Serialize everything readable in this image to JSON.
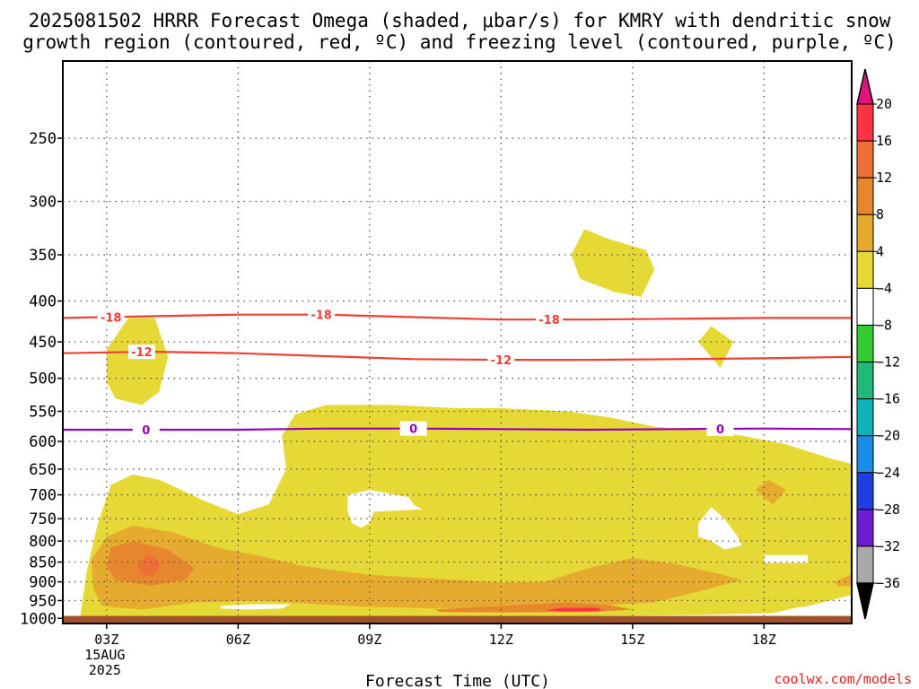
{
  "title": {
    "line1": "2025081502 HRRR Forecast Omega (shaded, μbar/s) for KMRY with dendritic snow",
    "line2": "growth region (contoured, red, ºC) and freezing level (contoured, purple, ºC)"
  },
  "credit": "coolwx.com/models",
  "colors": {
    "ground": "#a0522d",
    "dsg_contour": "#ee4035",
    "freezing_contour": "#9900bb",
    "grid": "#555555"
  },
  "chart_data": {
    "type": "heatmap",
    "xlabel": "Forecast Time (UTC)",
    "ylabel": "",
    "x_unit": "hour UTC, 15 Aug 2025",
    "xlim": [
      2,
      20
    ],
    "x_ticks": [
      {
        "x": 3,
        "label": "03Z",
        "sub": [
          "15AUG",
          "2025"
        ]
      },
      {
        "x": 6,
        "label": "06Z",
        "sub": []
      },
      {
        "x": 9,
        "label": "09Z",
        "sub": []
      },
      {
        "x": 12,
        "label": "12Z",
        "sub": []
      },
      {
        "x": 15,
        "label": "15Z",
        "sub": []
      },
      {
        "x": 18,
        "label": "18Z",
        "sub": []
      }
    ],
    "y_scale": "log",
    "y_inverted": true,
    "ylim": [
      1015,
      200
    ],
    "y_ticks": [
      250,
      300,
      350,
      400,
      450,
      500,
      550,
      600,
      650,
      700,
      750,
      800,
      850,
      900,
      950,
      1000
    ],
    "ground_level": 993,
    "grid": true,
    "colorbar": {
      "levels": [
        20,
        16,
        12,
        8,
        4,
        -4,
        -8,
        -12,
        -16,
        -20,
        -24,
        -28,
        -32,
        -36
      ],
      "colors": [
        "#ff3344",
        "#ee6f35",
        "#e8862d",
        "#e6aa2e",
        "#e6d835",
        "#ffffff",
        "#33cc33",
        "#22b877",
        "#10b3b8",
        "#1a8ee6",
        "#1f3fe0",
        "#6b1fcf",
        "#a011c0",
        "#a9a9a9"
      ],
      "top_arrow_color": "#e0157a",
      "bottom_arrow_color": "#000000"
    },
    "omega_regions": [
      {
        "level": 4,
        "points": [
          [
            2.4,
            992
          ],
          [
            2.55,
            870
          ],
          [
            2.8,
            760
          ],
          [
            3.1,
            680
          ],
          [
            3.6,
            660
          ],
          [
            4.2,
            670
          ],
          [
            5.3,
            715
          ],
          [
            6.0,
            740
          ],
          [
            6.7,
            720
          ],
          [
            7.1,
            650
          ],
          [
            7.0,
            590
          ],
          [
            7.3,
            555
          ],
          [
            8.0,
            540
          ],
          [
            9.5,
            540
          ],
          [
            11.0,
            545
          ],
          [
            12.0,
            545
          ],
          [
            13.5,
            550
          ],
          [
            14.5,
            560
          ],
          [
            15.5,
            575
          ],
          [
            16.5,
            580
          ],
          [
            17.5,
            590
          ],
          [
            18.5,
            605
          ],
          [
            19.5,
            630
          ],
          [
            20,
            640
          ],
          [
            20,
            935
          ],
          [
            19.0,
            965
          ],
          [
            18.2,
            985
          ],
          [
            16.5,
            990
          ],
          [
            14.0,
            993
          ],
          [
            10.0,
            993
          ],
          [
            6.0,
            993
          ],
          [
            3.0,
            993
          ]
        ]
      },
      {
        "level": 4,
        "points": [
          [
            3.0,
            460
          ],
          [
            3.5,
            420
          ],
          [
            4.1,
            420
          ],
          [
            4.4,
            470
          ],
          [
            4.2,
            520
          ],
          [
            3.8,
            540
          ],
          [
            3.2,
            530
          ],
          [
            3.0,
            505
          ]
        ]
      },
      {
        "level": 4,
        "points": [
          [
            13.6,
            350
          ],
          [
            13.9,
            325
          ],
          [
            14.5,
            335
          ],
          [
            15.3,
            345
          ],
          [
            15.5,
            365
          ],
          [
            15.2,
            395
          ],
          [
            14.6,
            390
          ],
          [
            13.8,
            375
          ]
        ]
      },
      {
        "level": 4,
        "points": [
          [
            16.5,
            450
          ],
          [
            16.8,
            430
          ],
          [
            17.3,
            450
          ],
          [
            17.0,
            485
          ]
        ]
      },
      {
        "level": 8,
        "points": [
          [
            2.7,
            920
          ],
          [
            2.65,
            845
          ],
          [
            3.0,
            790
          ],
          [
            3.6,
            765
          ],
          [
            4.5,
            780
          ],
          [
            5.5,
            815
          ],
          [
            6.5,
            835
          ],
          [
            7.5,
            860
          ],
          [
            9.0,
            882
          ],
          [
            10.5,
            892
          ],
          [
            12.0,
            902
          ],
          [
            13.0,
            900
          ],
          [
            14.0,
            865
          ],
          [
            15.0,
            840
          ],
          [
            16.0,
            855
          ],
          [
            17.0,
            880
          ],
          [
            17.5,
            895
          ],
          [
            16.5,
            925
          ],
          [
            15.5,
            955
          ],
          [
            14.0,
            965
          ],
          [
            12.5,
            970
          ],
          [
            10.5,
            972
          ],
          [
            8.5,
            965
          ],
          [
            6.5,
            950
          ],
          [
            5.0,
            955
          ],
          [
            3.8,
            975
          ],
          [
            2.9,
            965
          ]
        ]
      },
      {
        "level": 8,
        "points": [
          [
            17.8,
            690
          ],
          [
            18.1,
            670
          ],
          [
            18.5,
            690
          ],
          [
            18.2,
            720
          ]
        ]
      },
      {
        "level": 8,
        "points": [
          [
            19.6,
            900
          ],
          [
            20,
            880
          ],
          [
            20,
            910
          ],
          [
            19.7,
            912
          ]
        ]
      },
      {
        "level": 12,
        "points": [
          [
            3.0,
            860
          ],
          [
            3.1,
            815
          ],
          [
            3.6,
            800
          ],
          [
            4.4,
            820
          ],
          [
            5.0,
            865
          ],
          [
            4.8,
            895
          ],
          [
            4.0,
            910
          ],
          [
            3.2,
            895
          ]
        ]
      },
      {
        "level": 12,
        "points": [
          [
            10.5,
            975
          ],
          [
            11.5,
            968
          ],
          [
            12.5,
            962
          ],
          [
            13.5,
            955
          ],
          [
            14.5,
            963
          ],
          [
            15.0,
            975
          ],
          [
            14.0,
            982
          ],
          [
            12.0,
            983
          ],
          [
            10.6,
            982
          ]
        ]
      },
      {
        "level": 16,
        "points": [
          [
            3.7,
            860
          ],
          [
            3.95,
            830
          ],
          [
            4.25,
            855
          ],
          [
            4.05,
            885
          ],
          [
            3.8,
            880
          ]
        ]
      },
      {
        "level": 20,
        "points": [
          [
            13.0,
            977
          ],
          [
            13.4,
            970
          ],
          [
            14.2,
            970
          ],
          [
            14.3,
            978
          ],
          [
            13.5,
            981
          ]
        ]
      }
    ],
    "blank_regions": [
      {
        "points": [
          [
            8.5,
            700
          ],
          [
            9.0,
            690
          ],
          [
            9.9,
            705
          ],
          [
            10.0,
            720
          ],
          [
            10.2,
            730
          ],
          [
            9.1,
            735
          ],
          [
            9.0,
            760
          ],
          [
            8.8,
            770
          ],
          [
            8.6,
            760
          ],
          [
            8.5,
            735
          ]
        ]
      },
      {
        "points": [
          [
            16.5,
            760
          ],
          [
            16.8,
            725
          ],
          [
            17.1,
            750
          ],
          [
            17.4,
            790
          ],
          [
            17.5,
            810
          ],
          [
            17.1,
            820
          ],
          [
            16.8,
            800
          ],
          [
            16.5,
            790
          ]
        ]
      },
      {
        "points": [
          [
            18.0,
            833
          ],
          [
            19.0,
            833
          ],
          [
            19.0,
            852
          ],
          [
            18.0,
            852
          ]
        ]
      },
      {
        "points": [
          [
            5.6,
            965
          ],
          [
            6.3,
            960
          ],
          [
            7.2,
            960
          ],
          [
            7.0,
            972
          ],
          [
            6.2,
            975
          ],
          [
            5.6,
            972
          ]
        ]
      },
      {
        "points": [
          [
            18.2,
            985
          ],
          [
            18.8,
            968
          ],
          [
            19.4,
            962
          ],
          [
            20,
            960
          ],
          [
            20,
            993
          ],
          [
            18.5,
            993
          ]
        ]
      }
    ],
    "contours": [
      {
        "name": "-18",
        "color": "#ee4035",
        "x": [
          2,
          4,
          6,
          8,
          10,
          12,
          14,
          16,
          18,
          20
        ],
        "y": [
          420,
          418,
          416,
          416,
          419,
          422,
          422,
          421,
          420,
          420
        ],
        "label_x": [
          3.1,
          7.9,
          13.1
        ]
      },
      {
        "name": "-12",
        "color": "#ee4035",
        "x": [
          2,
          4,
          6,
          8,
          10,
          12,
          14,
          16,
          18,
          20
        ],
        "y": [
          465,
          463,
          465,
          469,
          473,
          474,
          474,
          473,
          472,
          470
        ],
        "label_x": [
          3.8,
          12.0
        ]
      },
      {
        "name": "0",
        "color": "#9900bb",
        "x": [
          2,
          4,
          6,
          8,
          10,
          12,
          14,
          16,
          18,
          20
        ],
        "y": [
          580,
          580,
          580,
          578,
          578,
          579,
          580,
          579,
          578,
          579
        ],
        "label_x": [
          3.9,
          10.0,
          17.0
        ]
      }
    ]
  }
}
